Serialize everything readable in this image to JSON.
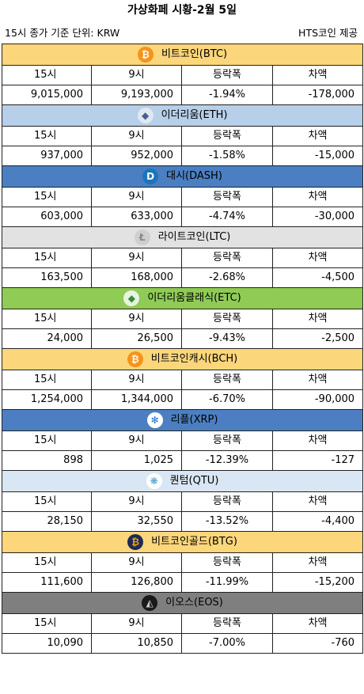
{
  "page": {
    "title": "가상화페 시황-2월 5일",
    "subtitle_left": "15시 종가 기준  단위: KRW",
    "subtitle_right": "HTS코인 제공"
  },
  "columns": [
    "15시",
    "9시",
    "등락폭",
    "차액"
  ],
  "coins": [
    {
      "name": "비트코인(BTC)",
      "icon": "bitcoin-icon",
      "glyph": "₿",
      "header_color": "#fbd67b",
      "icon_bg": "#f7931a",
      "icon_fg": "#ffffff",
      "row": [
        "9,015,000",
        "9,193,000",
        "-1.94%",
        "-178,000"
      ]
    },
    {
      "name": "이더리움(ETH)",
      "icon": "ethereum-icon",
      "glyph": "◆",
      "header_color": "#b7cfe8",
      "icon_bg": "#dfe8f3",
      "icon_fg": "#4a5f8a",
      "row": [
        "937,000",
        "952,000",
        "-1.58%",
        "-15,000"
      ]
    },
    {
      "name": "대시(DASH)",
      "icon": "dash-icon",
      "glyph": "D",
      "header_color": "#4b7fc1",
      "icon_bg": "#1c75bc",
      "icon_fg": "#ffffff",
      "row": [
        "603,000",
        "633,000",
        "-4.74%",
        "-30,000"
      ]
    },
    {
      "name": "라이트코인(LTC)",
      "icon": "litecoin-icon",
      "glyph": "Ł",
      "header_color": "#e2e2e2",
      "icon_bg": "#cfcfcf",
      "icon_fg": "#888888",
      "row": [
        "163,500",
        "168,000",
        "-2.68%",
        "-4,500"
      ]
    },
    {
      "name": "이더리움클래식(ETC)",
      "icon": "ethereum-classic-icon",
      "glyph": "◆",
      "header_color": "#8fcb55",
      "icon_bg": "#e8f3e0",
      "icon_fg": "#3b8a3e",
      "row": [
        "24,000",
        "26,500",
        "-9.43%",
        "-2,500"
      ]
    },
    {
      "name": "비트코인캐시(BCH)",
      "icon": "bitcoin-cash-icon",
      "glyph": "₿",
      "header_color": "#fbd67b",
      "icon_bg": "#f7931a",
      "icon_fg": "#ffffff",
      "row": [
        "1,254,000",
        "1,344,000",
        "-6.70%",
        "-90,000"
      ]
    },
    {
      "name": "리플(XRP)",
      "icon": "ripple-icon",
      "glyph": "✻",
      "header_color": "#4b7fc1",
      "icon_bg": "#ffffff",
      "icon_fg": "#1c6fd1",
      "row": [
        "898",
        "1,025",
        "-12.39%",
        "-127"
      ]
    },
    {
      "name": "퀀텀(QTU)",
      "icon": "qtum-icon",
      "glyph": "❋",
      "header_color": "#d9e6f3",
      "icon_bg": "#ffffff",
      "icon_fg": "#3a9bc9",
      "row": [
        "28,150",
        "32,550",
        "-13.52%",
        "-4,400"
      ]
    },
    {
      "name": "비트코인골드(BTG)",
      "icon": "bitcoin-gold-icon",
      "glyph": "₿",
      "header_color": "#fbd67b",
      "icon_bg": "#1f2a55",
      "icon_fg": "#eba809",
      "row": [
        "111,600",
        "126,800",
        "-11.99%",
        "-15,200"
      ]
    },
    {
      "name": "이오스(EOS)",
      "icon": "eos-icon",
      "glyph": "◭",
      "header_color": "#7f7f7f",
      "icon_bg": "#1a1a1a",
      "icon_fg": "#cccccc",
      "row": [
        "10,090",
        "10,850",
        "-7.00%",
        "-760"
      ]
    }
  ]
}
